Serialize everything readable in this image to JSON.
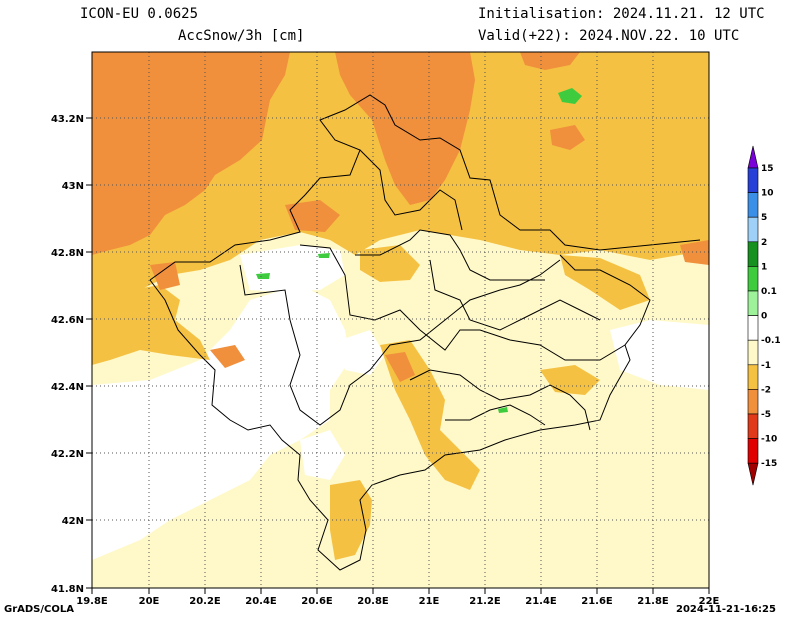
{
  "header": {
    "model": "ICON-EU 0.0625",
    "variable": "AccSnow/3h [cm]",
    "init": "Initialisation: 2024.11.21. 12 UTC",
    "valid": "Valid(+22): 2024.NOV.22. 10 UTC"
  },
  "axes": {
    "lat_labels": [
      "43.2N",
      "43N",
      "42.8N",
      "42.6N",
      "42.4N",
      "42.2N",
      "42N",
      "41.8N"
    ],
    "lon_labels": [
      "19.8E",
      "20E",
      "20.2E",
      "20.4E",
      "20.6E",
      "20.8E",
      "21E",
      "21.2E",
      "21.4E",
      "21.6E",
      "21.8E",
      "22E"
    ]
  },
  "colorbar": {
    "labels": [
      "15",
      "10",
      "5",
      "2",
      "1",
      "0.1",
      "0",
      "-0.1",
      "-1",
      "-2",
      "-5",
      "-10",
      "-15"
    ],
    "colors": [
      "#7a00d9",
      "#2840d8",
      "#3c8fe6",
      "#9fd0f7",
      "#16901e",
      "#3ecc3e",
      "#9ef29a",
      "#ffffff",
      "#fff9c9",
      "#f5c142",
      "#f08f3c",
      "#e03a1a",
      "#e00000",
      "#a00000"
    ]
  },
  "footer": {
    "left": "GrADS/COLA",
    "right": "2024-11-21-16:25"
  }
}
